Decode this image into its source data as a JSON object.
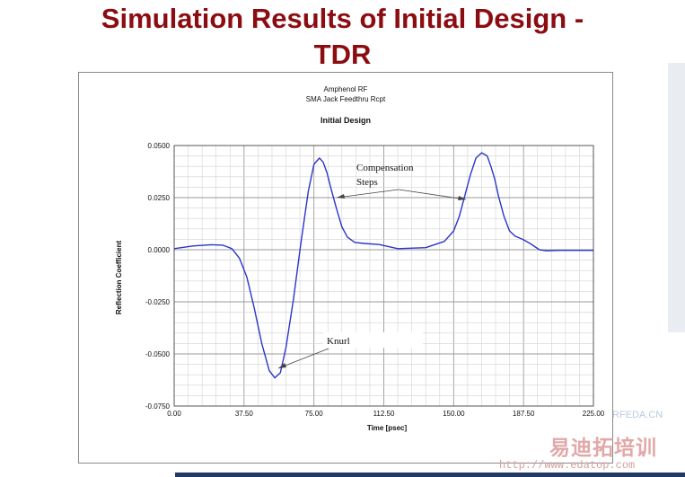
{
  "slide": {
    "title_line1": "Simulation Results of Initial Design -",
    "title_line2": "TDR"
  },
  "chart_data": {
    "type": "line",
    "header_line1": "Amphenol RF",
    "header_line2": "SMA Jack Feedthru Rcpt",
    "title": "Initial Design",
    "xlabel": "Time [psec]",
    "ylabel": "Reflection Coefficient",
    "xlim": [
      0,
      225
    ],
    "ylim": [
      -0.075,
      0.05
    ],
    "x_ticks": [
      "0.00",
      "37.50",
      "75.00",
      "112.50",
      "150.00",
      "187.50",
      "225.00"
    ],
    "y_ticks": [
      "0.0500",
      "0.0250",
      "0.0000",
      "-0.0250",
      "-0.0500",
      "-0.0750"
    ],
    "grid": true,
    "series_color": "#2b35c9",
    "series": [
      {
        "x": [
          0,
          10,
          20,
          26,
          31,
          35,
          39,
          43,
          47,
          51,
          54,
          57,
          60,
          64,
          68,
          72,
          75,
          78,
          80,
          82,
          84,
          87,
          90,
          93,
          97,
          102,
          110,
          120,
          135,
          145,
          150,
          153,
          156,
          159,
          162,
          165,
          168,
          170,
          172,
          174,
          177,
          180,
          183,
          187,
          191,
          196,
          200,
          207,
          215,
          225
        ],
        "y": [
          0.0005,
          0.0018,
          0.0024,
          0.0022,
          0.0005,
          -0.004,
          -0.013,
          -0.028,
          -0.045,
          -0.058,
          -0.0615,
          -0.059,
          -0.047,
          -0.024,
          0.003,
          0.028,
          0.041,
          0.044,
          0.042,
          0.037,
          0.03,
          0.02,
          0.011,
          0.006,
          0.0035,
          0.003,
          0.0025,
          0.0005,
          0.001,
          0.004,
          0.009,
          0.016,
          0.026,
          0.036,
          0.044,
          0.0465,
          0.045,
          0.04,
          0.034,
          0.026,
          0.016,
          0.009,
          0.0065,
          0.005,
          0.003,
          0.0,
          -0.0005,
          -0.0003,
          -0.0003,
          -0.0003
        ]
      }
    ],
    "annotations": {
      "compensation_line1": "Compensation",
      "compensation_line2": "Steps",
      "knurl": "Knurl"
    }
  },
  "watermark": {
    "domain_text": "RFEDA.CN",
    "brand_text": "易迪拓培训",
    "url_text": "http://www.edatop.com"
  }
}
